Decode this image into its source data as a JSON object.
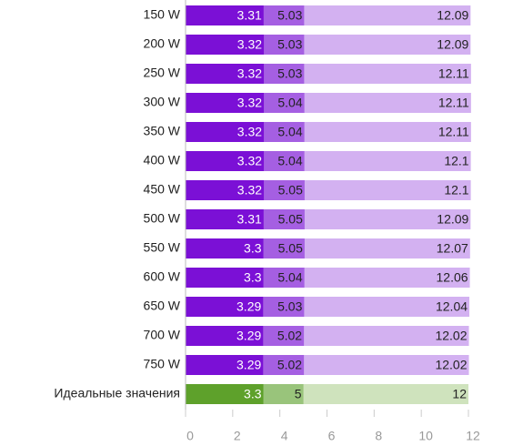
{
  "chart_data": {
    "type": "overlap-bar",
    "categories": [
      "150 W",
      "200 W",
      "250 W",
      "300 W",
      "350 W",
      "400 W",
      "450 W",
      "500 W",
      "550 W",
      "600 W",
      "650 W",
      "700 W",
      "750 W",
      "Идеальные значения"
    ],
    "series": [
      {
        "values": [
          12.09,
          12.09,
          12.11,
          12.11,
          12.11,
          12.1,
          12.1,
          12.09,
          12.07,
          12.06,
          12.04,
          12.02,
          12.02,
          12
        ],
        "colors": [
          "#d3b1f1",
          "#d3b1f1",
          "#d3b1f1",
          "#d3b1f1",
          "#d3b1f1",
          "#d3b1f1",
          "#d3b1f1",
          "#d3b1f1",
          "#d3b1f1",
          "#d3b1f1",
          "#d3b1f1",
          "#d3b1f1",
          "#d3b1f1",
          "#cfe3bd"
        ],
        "label_color": "#222222"
      },
      {
        "values": [
          5.03,
          5.03,
          5.03,
          5.04,
          5.04,
          5.04,
          5.05,
          5.05,
          5.05,
          5.04,
          5.03,
          5.02,
          5.02,
          5
        ],
        "colors": [
          "#a55fe2",
          "#a55fe2",
          "#a55fe2",
          "#a55fe2",
          "#a55fe2",
          "#a55fe2",
          "#a55fe2",
          "#a55fe2",
          "#a55fe2",
          "#a55fe2",
          "#a55fe2",
          "#a55fe2",
          "#a55fe2",
          "#99c47b"
        ],
        "label_color": "#222222"
      },
      {
        "values": [
          3.31,
          3.32,
          3.32,
          3.32,
          3.32,
          3.32,
          3.32,
          3.31,
          3.3,
          3.3,
          3.29,
          3.29,
          3.29,
          3.3
        ],
        "colors": [
          "#7b10d6",
          "#7b10d6",
          "#7b10d6",
          "#7b10d6",
          "#7b10d6",
          "#7b10d6",
          "#7b10d6",
          "#7b10d6",
          "#7b10d6",
          "#7b10d6",
          "#7b10d6",
          "#7b10d6",
          "#7b10d6",
          "#5ea12b"
        ],
        "label_color": "#ffffff"
      }
    ],
    "xlim": [
      0,
      12
    ],
    "xticks": [
      0,
      2,
      4,
      6,
      8,
      10,
      12
    ]
  }
}
